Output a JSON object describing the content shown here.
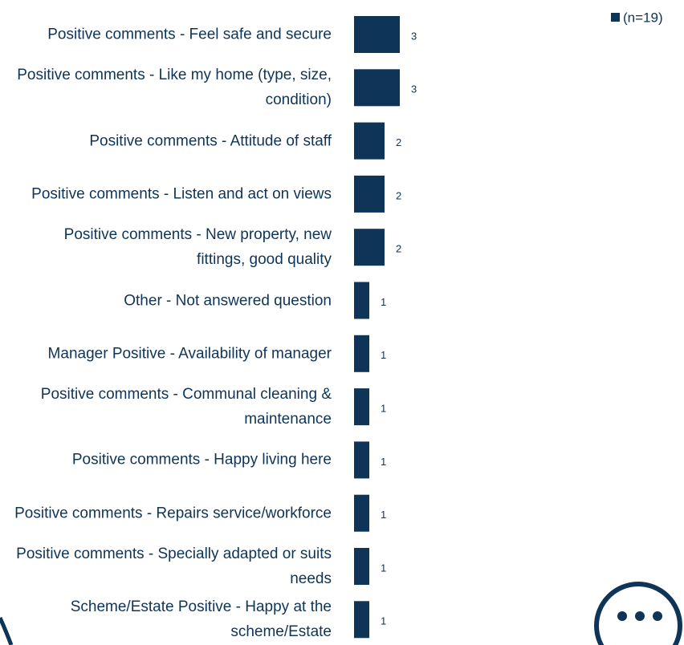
{
  "chart_data": {
    "type": "bar",
    "orientation": "horizontal",
    "categories": [
      "Positive comments - Feel safe and secure",
      "Positive comments - Like my home (type, size, condition)",
      "Positive comments - Attitude of staff",
      "Positive comments - Listen and act on views",
      "Positive comments - New property, new fittings, good quality",
      "Other - Not answered question",
      "Manager Positive - Availability of manager",
      "Positive comments - Communal cleaning & maintenance",
      "Positive comments - Happy living here",
      "Positive comments - Repairs service/workforce",
      "Positive comments - Specially adapted or suits needs",
      "Scheme/Estate Positive - Happy at the scheme/Estate"
    ],
    "series": [
      {
        "name": "(n=19)",
        "color": "#0e3458",
        "values": [
          3,
          3,
          2,
          2,
          2,
          1,
          1,
          1,
          1,
          1,
          1,
          1
        ]
      }
    ]
  }
}
